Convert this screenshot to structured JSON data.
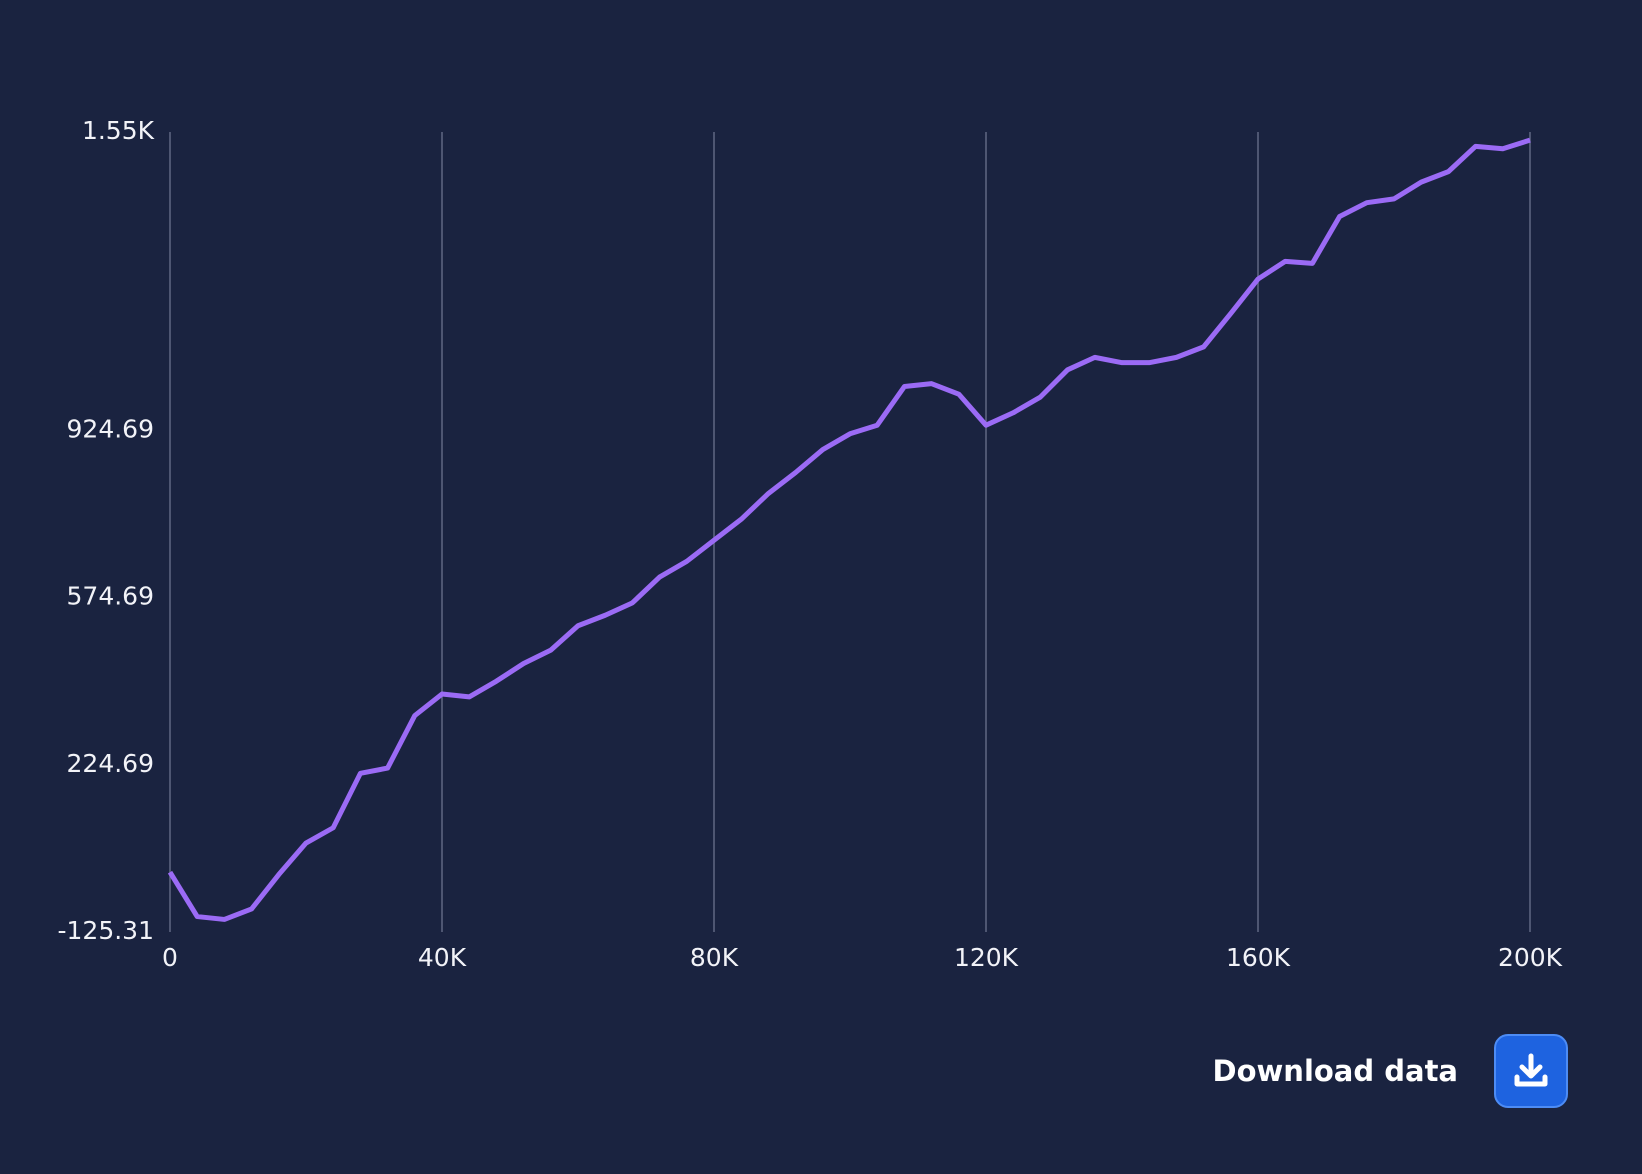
{
  "chart_data": {
    "type": "line",
    "x": [
      0,
      4000,
      8000,
      12000,
      16000,
      20000,
      24000,
      28000,
      32000,
      36000,
      40000,
      44000,
      48000,
      52000,
      56000,
      60000,
      64000,
      68000,
      72000,
      76000,
      80000,
      84000,
      88000,
      92000,
      96000,
      100000,
      104000,
      108000,
      112000,
      116000,
      120000,
      124000,
      128000,
      132000,
      136000,
      140000,
      144000,
      148000,
      152000,
      156000,
      160000,
      164000,
      168000,
      172000,
      176000,
      180000,
      184000,
      188000,
      192000,
      196000,
      200000
    ],
    "series": [
      {
        "name": "value",
        "color": "#9b6bf5",
        "values": [
          0,
          -93,
          -99,
          -77,
          -5,
          61,
          93,
          207,
          218,
          328,
          373,
          367,
          400,
          437,
          465,
          516,
          538,
          564,
          618,
          651,
          695,
          739,
          793,
          837,
          885,
          918,
          936,
          1017,
          1023,
          1001,
          936,
          962,
          995,
          1052,
          1078,
          1067,
          1067,
          1078,
          1100,
          1170,
          1242,
          1279,
          1275,
          1373,
          1402,
          1410,
          1445,
          1467,
          1520,
          1515,
          1533
        ]
      }
    ],
    "xlim": [
      0,
      200000
    ],
    "xticks": [
      0,
      {
        "value": 40000,
        "label": "40K"
      },
      {
        "value": 80000,
        "label": "80K"
      },
      {
        "value": 120000,
        "label": "120K"
      },
      {
        "value": 160000,
        "label": "160K"
      },
      {
        "value": 200000,
        "label": "200K"
      }
    ],
    "ylim": [
      -125.31,
      1550
    ],
    "yticks": [
      -125.31,
      224.69,
      574.69,
      924.69,
      {
        "value": 1550,
        "label": "1.55K"
      }
    ],
    "grid": true
  },
  "download": {
    "label": "Download data"
  }
}
